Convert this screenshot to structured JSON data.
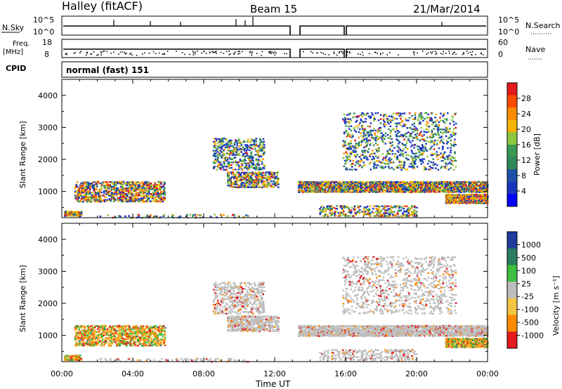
{
  "header": {
    "station": "Halley (fitACF)",
    "beam": "Beam 15",
    "date": "21/Mar/2014"
  },
  "top_panels": {
    "nsky_label": "N.Sky",
    "nsky_ticks": [
      "10^5",
      "10^0"
    ],
    "nsearch_label": "N.Search",
    "nsearch_ticks": [
      "10^5",
      "10^0"
    ],
    "freq_label_1": "Freq.",
    "freq_label_2": "[MHz]",
    "freq_ticks": [
      "18",
      "8"
    ],
    "nave_label": "Nave",
    "nave_ticks": [
      "60",
      "0"
    ],
    "cpid_label": "CPID",
    "cpid_value": "normal (fast) 151"
  },
  "legend_power": {
    "label": "Power [dB]",
    "ticks": [
      "28",
      "24",
      "20",
      "16",
      "12",
      "8",
      "4"
    ],
    "colors": [
      "#e41a1c",
      "#ff4a00",
      "#ff8c00",
      "#f4b400",
      "#8dc63f",
      "#3a9a52",
      "#2e8b57",
      "#1e4fa8",
      "#1a36c0",
      "#0000ff"
    ]
  },
  "legend_velocity": {
    "label": "Velocity [m s⁻¹]",
    "ticks": [
      "1000",
      "500",
      "100",
      "25",
      "-25",
      "-100",
      "-500",
      "-1000"
    ],
    "colors": [
      "#1f3b9e",
      "#2a7b5f",
      "#3fbf3f",
      "#bdbdbd",
      "#f4c542",
      "#ff8c00",
      "#e41a1c"
    ]
  },
  "chart_data": [
    {
      "type": "heatmap",
      "title": "Power",
      "ylabel": "Slant Range [km]",
      "xlabel": "Time UT",
      "yticks": [
        "1000",
        "2000",
        "3000",
        "4000"
      ],
      "xticks": [
        "00:00",
        "04:00",
        "08:00",
        "12:00",
        "16:00",
        "20:00",
        "00:00"
      ],
      "ylim": [
        180,
        4500
      ],
      "xlim": [
        "00:00",
        "24:00"
      ],
      "colorbar_label": "Power [dB]"
    },
    {
      "type": "heatmap",
      "title": "Velocity",
      "ylabel": "Slant Range [km]",
      "xlabel": "Time UT",
      "yticks": [
        "1000",
        "2000",
        "3000",
        "4000"
      ],
      "xticks": [
        "00:00",
        "04:00",
        "08:00",
        "12:00",
        "16:00",
        "20:00",
        "00:00"
      ],
      "ylim": [
        180,
        4500
      ],
      "xlim": [
        "00:00",
        "24:00"
      ],
      "colorbar_label": "Velocity [m s⁻¹]"
    }
  ],
  "x_axis": {
    "label": "Time UT",
    "ticks": [
      "00:00",
      "04:00",
      "08:00",
      "12:00",
      "16:00",
      "20:00",
      "00:00"
    ]
  }
}
